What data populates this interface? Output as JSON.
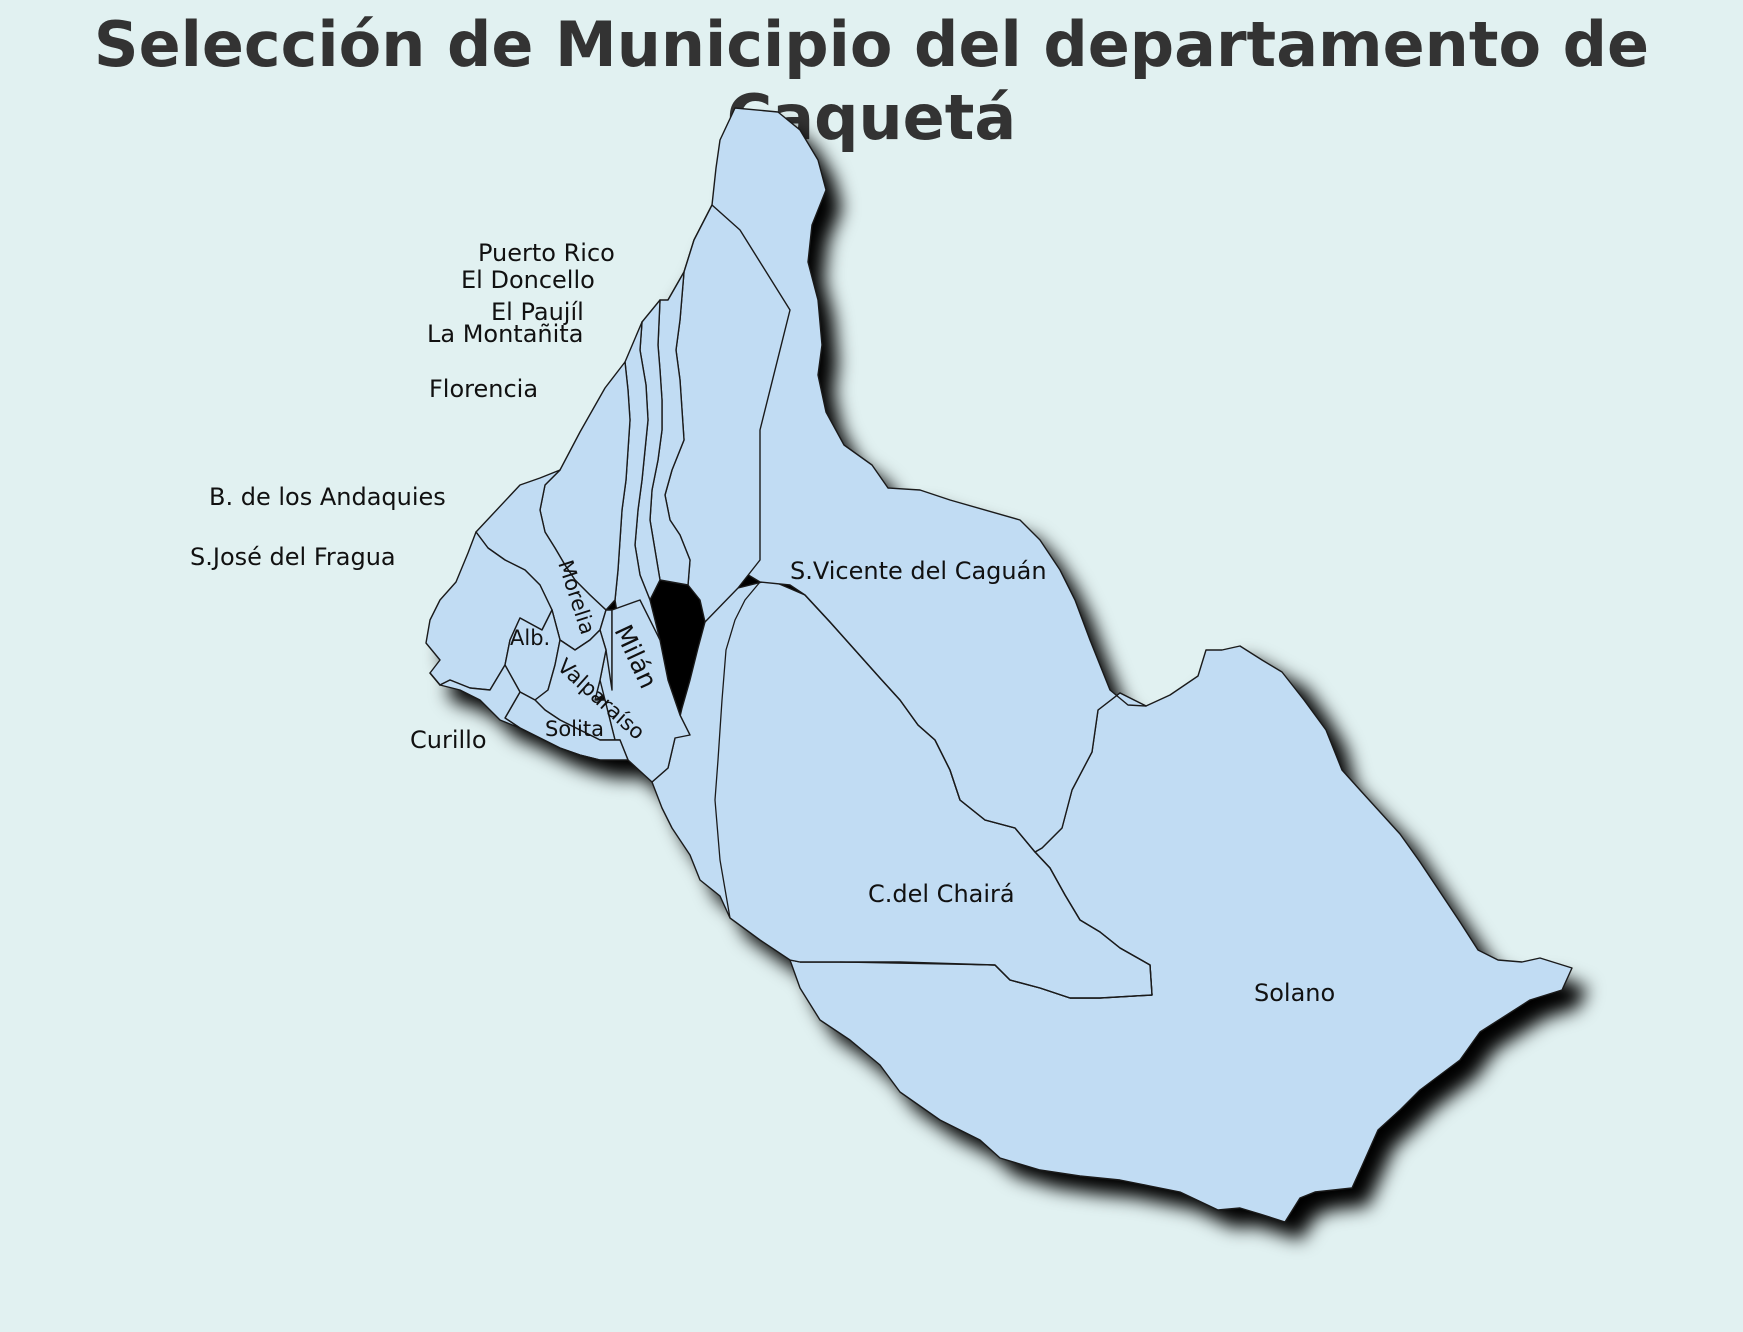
{
  "title": "Selección de Municipio del departamento de Caquetá",
  "colors": {
    "background": "#e1f1f1",
    "municipality_fill": "#c1dcf3",
    "border": "#1a1a1a",
    "title": "#333333"
  },
  "municipalities": [
    {
      "id": "puerto-rico",
      "label": "Puerto Rico"
    },
    {
      "id": "el-doncello",
      "label": "El Doncello"
    },
    {
      "id": "el-paujil",
      "label": "El Paujíl"
    },
    {
      "id": "la-montanita",
      "label": "La Montañita"
    },
    {
      "id": "florencia",
      "label": "Florencia"
    },
    {
      "id": "belen-andaquies",
      "label": "B. de los Andaquies"
    },
    {
      "id": "san-jose-fragua",
      "label": "S.José del Fragua"
    },
    {
      "id": "morelia",
      "label": "Morelia"
    },
    {
      "id": "albania",
      "label": "Alb."
    },
    {
      "id": "milan",
      "label": "Milán"
    },
    {
      "id": "valparaiso",
      "label": "Valparaíso"
    },
    {
      "id": "solita",
      "label": "Solita"
    },
    {
      "id": "curillo",
      "label": "Curillo"
    },
    {
      "id": "san-vicente",
      "label": "S.Vicente del Caguán"
    },
    {
      "id": "cartagena-chaira",
      "label": "C.del Chairá"
    },
    {
      "id": "solano",
      "label": "Solano"
    }
  ]
}
